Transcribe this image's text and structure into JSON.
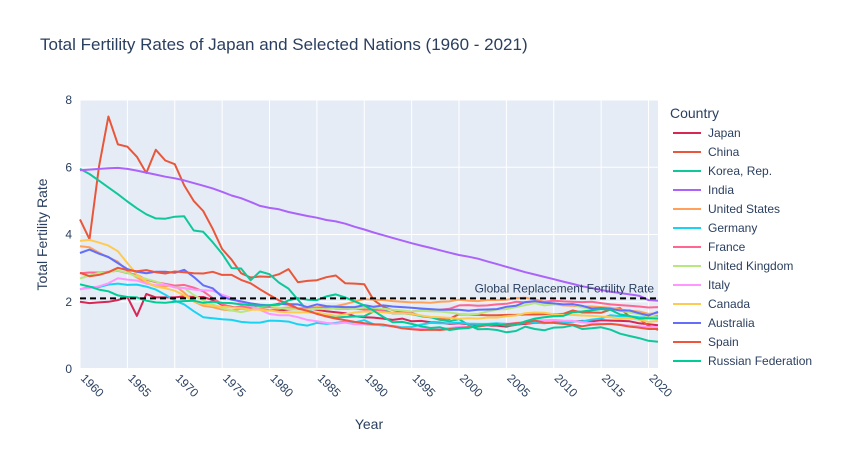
{
  "chart_data": {
    "type": "line",
    "title": "Total Fertility Rates of Japan and Selected Nations (1960 - 2021)",
    "xlabel": "Year",
    "ylabel": "Total Fertility Rate",
    "xlim": [
      1960,
      2021
    ],
    "ylim": [
      0,
      8
    ],
    "x_ticks": [
      1960,
      1965,
      1970,
      1975,
      1980,
      1985,
      1990,
      1995,
      2000,
      2005,
      2010,
      2015,
      2020
    ],
    "y_ticks": [
      0,
      2,
      4,
      6,
      8
    ],
    "grid": true,
    "legend": {
      "title": "Country",
      "position": "right"
    },
    "annotation": {
      "text": "Global Replacement Fertility Rate",
      "y": 2.1,
      "style": "dashed",
      "color": "#000000"
    },
    "x": [
      1960,
      1961,
      1962,
      1963,
      1964,
      1965,
      1966,
      1967,
      1968,
      1969,
      1970,
      1971,
      1972,
      1973,
      1974,
      1975,
      1976,
      1977,
      1978,
      1979,
      1980,
      1981,
      1982,
      1983,
      1984,
      1985,
      1986,
      1987,
      1988,
      1989,
      1990,
      1991,
      1992,
      1993,
      1994,
      1995,
      1996,
      1997,
      1998,
      1999,
      2000,
      2001,
      2002,
      2003,
      2004,
      2005,
      2006,
      2007,
      2008,
      2009,
      2010,
      2011,
      2012,
      2013,
      2014,
      2015,
      2016,
      2017,
      2018,
      2019,
      2020,
      2021
    ],
    "series": [
      {
        "name": "Japan",
        "color": "#d62755",
        "values": [
          2.0,
          1.96,
          1.98,
          2.0,
          2.05,
          2.14,
          1.58,
          2.23,
          2.13,
          2.13,
          2.13,
          2.16,
          2.14,
          2.14,
          2.05,
          1.91,
          1.85,
          1.8,
          1.79,
          1.77,
          1.75,
          1.74,
          1.77,
          1.8,
          1.81,
          1.76,
          1.72,
          1.69,
          1.66,
          1.57,
          1.54,
          1.53,
          1.5,
          1.46,
          1.5,
          1.42,
          1.43,
          1.39,
          1.38,
          1.34,
          1.36,
          1.33,
          1.32,
          1.29,
          1.29,
          1.26,
          1.32,
          1.34,
          1.37,
          1.37,
          1.39,
          1.39,
          1.41,
          1.43,
          1.42,
          1.45,
          1.44,
          1.43,
          1.42,
          1.36,
          1.33,
          1.3
        ]
      },
      {
        "name": "China",
        "color": "#e8573a",
        "values": [
          4.45,
          3.86,
          6.02,
          7.51,
          6.68,
          6.61,
          6.31,
          5.83,
          6.52,
          6.2,
          6.09,
          5.46,
          5.0,
          4.7,
          4.17,
          3.57,
          3.25,
          2.85,
          2.72,
          2.75,
          2.74,
          2.82,
          2.97,
          2.58,
          2.62,
          2.64,
          2.73,
          2.78,
          2.55,
          2.54,
          2.52,
          2.05,
          1.85,
          1.75,
          1.7,
          1.66,
          1.58,
          1.54,
          1.51,
          1.49,
          1.63,
          1.62,
          1.61,
          1.6,
          1.6,
          1.61,
          1.61,
          1.62,
          1.62,
          1.63,
          1.63,
          1.64,
          1.74,
          1.68,
          1.68,
          1.67,
          1.77,
          1.81,
          1.55,
          1.5,
          1.28,
          1.16
        ]
      },
      {
        "name": "Korea, Rep.",
        "color": "#10c79b",
        "values": [
          5.95,
          5.8,
          5.6,
          5.4,
          5.2,
          4.98,
          4.78,
          4.6,
          4.48,
          4.47,
          4.53,
          4.54,
          4.12,
          4.08,
          3.77,
          3.43,
          3.0,
          2.99,
          2.64,
          2.9,
          2.82,
          2.57,
          2.39,
          2.06,
          1.74,
          1.66,
          1.58,
          1.53,
          1.55,
          1.56,
          1.57,
          1.71,
          1.76,
          1.65,
          1.66,
          1.63,
          1.57,
          1.54,
          1.46,
          1.42,
          1.48,
          1.31,
          1.18,
          1.19,
          1.16,
          1.09,
          1.13,
          1.26,
          1.19,
          1.15,
          1.23,
          1.24,
          1.3,
          1.19,
          1.21,
          1.24,
          1.17,
          1.05,
          0.98,
          0.92,
          0.84,
          0.81
        ]
      },
      {
        "name": "India",
        "color": "#ab63fa",
        "values": [
          5.91,
          5.93,
          5.95,
          5.97,
          5.98,
          5.95,
          5.9,
          5.84,
          5.78,
          5.72,
          5.67,
          5.61,
          5.53,
          5.45,
          5.37,
          5.27,
          5.16,
          5.08,
          4.97,
          4.85,
          4.79,
          4.75,
          4.67,
          4.61,
          4.55,
          4.5,
          4.43,
          4.39,
          4.32,
          4.23,
          4.15,
          4.06,
          3.98,
          3.9,
          3.82,
          3.74,
          3.67,
          3.6,
          3.53,
          3.46,
          3.39,
          3.34,
          3.28,
          3.2,
          3.12,
          3.04,
          2.96,
          2.88,
          2.81,
          2.74,
          2.67,
          2.6,
          2.53,
          2.46,
          2.41,
          2.35,
          2.3,
          2.26,
          2.22,
          2.18,
          2.05,
          2.03
        ]
      },
      {
        "name": "United States",
        "color": "#ffa15a",
        "values": [
          3.65,
          3.62,
          3.46,
          3.32,
          3.19,
          2.91,
          2.72,
          2.56,
          2.46,
          2.46,
          2.48,
          2.27,
          2.01,
          1.88,
          1.84,
          1.77,
          1.74,
          1.79,
          1.76,
          1.81,
          1.84,
          1.81,
          1.83,
          1.8,
          1.81,
          1.84,
          1.84,
          1.87,
          1.93,
          2.01,
          2.08,
          2.06,
          2.05,
          2.02,
          2.0,
          1.98,
          1.98,
          1.97,
          2.0,
          2.01,
          2.06,
          2.03,
          2.02,
          2.05,
          2.05,
          2.06,
          2.11,
          2.12,
          2.07,
          2.0,
          1.93,
          1.89,
          1.88,
          1.86,
          1.86,
          1.84,
          1.82,
          1.77,
          1.73,
          1.71,
          1.64,
          1.66
        ]
      },
      {
        "name": "Germany",
        "color": "#19d3f3",
        "values": [
          2.37,
          2.44,
          2.44,
          2.51,
          2.54,
          2.5,
          2.51,
          2.45,
          2.36,
          2.21,
          2.03,
          1.92,
          1.72,
          1.54,
          1.51,
          1.48,
          1.46,
          1.4,
          1.38,
          1.38,
          1.44,
          1.43,
          1.41,
          1.33,
          1.29,
          1.37,
          1.34,
          1.37,
          1.41,
          1.39,
          1.45,
          1.33,
          1.29,
          1.28,
          1.24,
          1.25,
          1.32,
          1.37,
          1.36,
          1.36,
          1.38,
          1.35,
          1.34,
          1.34,
          1.36,
          1.34,
          1.33,
          1.37,
          1.38,
          1.36,
          1.39,
          1.39,
          1.41,
          1.42,
          1.47,
          1.5,
          1.6,
          1.57,
          1.57,
          1.54,
          1.53,
          1.58
        ]
      },
      {
        "name": "France",
        "color": "#ff6692",
        "values": [
          2.85,
          2.87,
          2.87,
          2.89,
          2.92,
          2.85,
          2.8,
          2.66,
          2.58,
          2.53,
          2.48,
          2.5,
          2.42,
          2.31,
          2.11,
          1.93,
          1.83,
          1.86,
          1.82,
          1.86,
          1.85,
          1.95,
          1.91,
          1.78,
          1.8,
          1.81,
          1.83,
          1.8,
          1.8,
          1.79,
          1.77,
          1.77,
          1.73,
          1.66,
          1.68,
          1.71,
          1.74,
          1.73,
          1.76,
          1.79,
          1.89,
          1.9,
          1.88,
          1.89,
          1.92,
          1.94,
          2.0,
          1.98,
          2.01,
          2.0,
          2.03,
          2.01,
          2.0,
          1.99,
          2.0,
          1.96,
          1.92,
          1.9,
          1.88,
          1.86,
          1.83,
          1.84
        ]
      },
      {
        "name": "United Kingdom",
        "color": "#b6e880",
        "values": [
          2.69,
          2.78,
          2.86,
          2.88,
          2.93,
          2.86,
          2.75,
          2.68,
          2.6,
          2.5,
          2.43,
          2.41,
          2.2,
          2.04,
          1.92,
          1.81,
          1.74,
          1.69,
          1.75,
          1.86,
          1.89,
          1.82,
          1.78,
          1.77,
          1.77,
          1.79,
          1.78,
          1.81,
          1.82,
          1.79,
          1.83,
          1.82,
          1.79,
          1.76,
          1.74,
          1.71,
          1.73,
          1.72,
          1.71,
          1.68,
          1.64,
          1.63,
          1.64,
          1.71,
          1.77,
          1.78,
          1.84,
          1.9,
          1.96,
          1.89,
          1.92,
          1.91,
          1.92,
          1.83,
          1.81,
          1.8,
          1.79,
          1.74,
          1.68,
          1.63,
          1.56,
          1.53
        ]
      },
      {
        "name": "Italy",
        "color": "#ff97ff",
        "values": [
          2.37,
          2.41,
          2.46,
          2.55,
          2.7,
          2.66,
          2.63,
          2.54,
          2.49,
          2.51,
          2.42,
          2.41,
          2.36,
          2.34,
          2.33,
          2.21,
          2.11,
          1.97,
          1.87,
          1.76,
          1.64,
          1.6,
          1.6,
          1.54,
          1.46,
          1.42,
          1.37,
          1.35,
          1.38,
          1.33,
          1.33,
          1.31,
          1.31,
          1.26,
          1.22,
          1.19,
          1.21,
          1.22,
          1.2,
          1.22,
          1.26,
          1.25,
          1.27,
          1.29,
          1.34,
          1.34,
          1.37,
          1.4,
          1.45,
          1.45,
          1.46,
          1.44,
          1.43,
          1.39,
          1.37,
          1.35,
          1.34,
          1.32,
          1.29,
          1.27,
          1.24,
          1.25
        ]
      },
      {
        "name": "Canada",
        "color": "#fecb52",
        "values": [
          3.81,
          3.84,
          3.76,
          3.67,
          3.5,
          3.15,
          2.81,
          2.6,
          2.45,
          2.4,
          2.33,
          2.19,
          2.02,
          1.93,
          1.88,
          1.85,
          1.83,
          1.81,
          1.76,
          1.76,
          1.74,
          1.7,
          1.69,
          1.68,
          1.69,
          1.67,
          1.63,
          1.58,
          1.63,
          1.68,
          1.71,
          1.7,
          1.69,
          1.66,
          1.66,
          1.64,
          1.59,
          1.55,
          1.54,
          1.52,
          1.49,
          1.51,
          1.5,
          1.53,
          1.53,
          1.57,
          1.59,
          1.66,
          1.68,
          1.67,
          1.63,
          1.61,
          1.61,
          1.59,
          1.58,
          1.56,
          1.54,
          1.5,
          1.51,
          1.47,
          1.4,
          1.43
        ]
      },
      {
        "name": "Australia",
        "color": "#636efa",
        "values": [
          3.45,
          3.55,
          3.43,
          3.33,
          3.15,
          2.97,
          2.89,
          2.85,
          2.89,
          2.89,
          2.86,
          2.95,
          2.74,
          2.49,
          2.4,
          2.15,
          2.06,
          2.01,
          1.95,
          1.91,
          1.89,
          1.94,
          1.93,
          1.92,
          1.84,
          1.92,
          1.87,
          1.85,
          1.84,
          1.84,
          1.9,
          1.85,
          1.89,
          1.86,
          1.84,
          1.82,
          1.8,
          1.78,
          1.76,
          1.76,
          1.76,
          1.73,
          1.76,
          1.77,
          1.78,
          1.85,
          1.88,
          1.99,
          2.02,
          1.97,
          1.95,
          1.92,
          1.93,
          1.88,
          1.8,
          1.81,
          1.79,
          1.74,
          1.74,
          1.66,
          1.59,
          1.7
        ]
      },
      {
        "name": "Spain",
        "color": "#ef553b",
        "values": [
          2.86,
          2.76,
          2.8,
          2.88,
          3.01,
          2.94,
          2.91,
          2.94,
          2.88,
          2.84,
          2.9,
          2.88,
          2.85,
          2.84,
          2.89,
          2.8,
          2.8,
          2.65,
          2.55,
          2.37,
          2.2,
          2.04,
          1.94,
          1.8,
          1.73,
          1.64,
          1.56,
          1.5,
          1.45,
          1.4,
          1.36,
          1.33,
          1.32,
          1.27,
          1.21,
          1.18,
          1.16,
          1.17,
          1.16,
          1.19,
          1.22,
          1.24,
          1.26,
          1.31,
          1.32,
          1.33,
          1.36,
          1.38,
          1.44,
          1.38,
          1.37,
          1.34,
          1.32,
          1.27,
          1.32,
          1.33,
          1.34,
          1.31,
          1.26,
          1.23,
          1.19,
          1.19
        ]
      },
      {
        "name": "Russian Federation",
        "color": "#00cc96",
        "values": [
          2.52,
          2.45,
          2.36,
          2.31,
          2.19,
          2.14,
          2.13,
          2.03,
          1.98,
          1.97,
          2.0,
          2.02,
          2.03,
          1.97,
          2.0,
          1.97,
          1.96,
          1.92,
          1.9,
          1.88,
          1.9,
          1.91,
          2.04,
          2.11,
          2.06,
          2.05,
          2.16,
          2.22,
          2.13,
          2.01,
          1.89,
          1.73,
          1.55,
          1.39,
          1.4,
          1.34,
          1.27,
          1.22,
          1.24,
          1.16,
          1.2,
          1.22,
          1.29,
          1.32,
          1.34,
          1.29,
          1.31,
          1.42,
          1.5,
          1.54,
          1.57,
          1.58,
          1.69,
          1.71,
          1.75,
          1.78,
          1.76,
          1.62,
          1.58,
          1.5,
          1.51,
          1.5
        ]
      }
    ]
  }
}
